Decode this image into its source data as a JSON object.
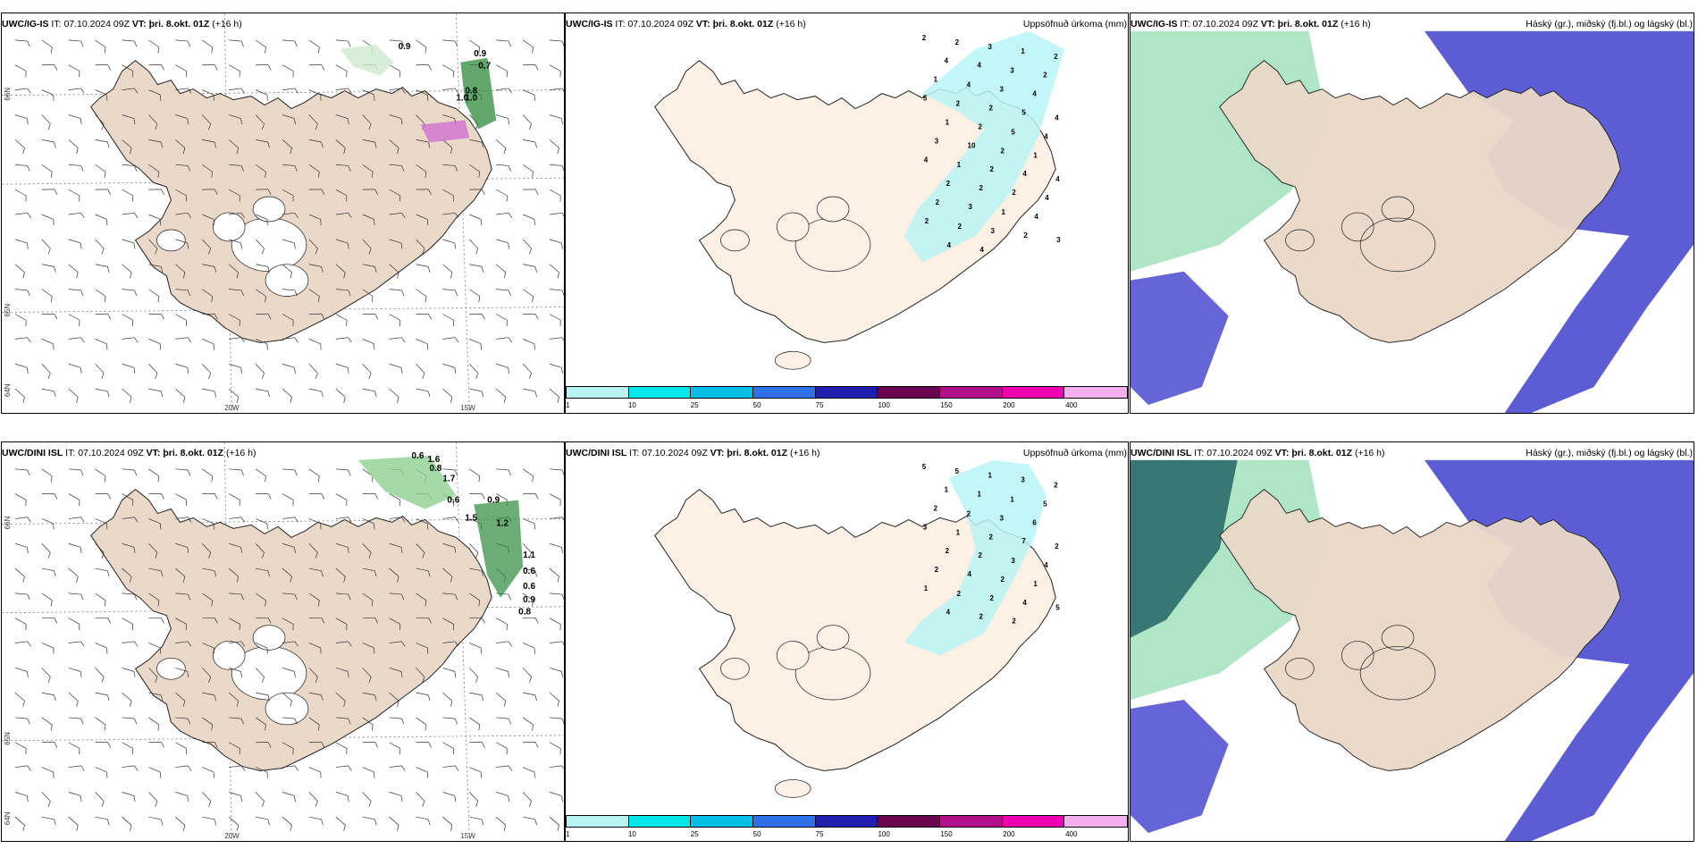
{
  "rows": [
    {
      "model": "UWC/IG-IS",
      "it_label": "IT:",
      "it_value": "07.10.2024 09Z",
      "vt_label": "VT:",
      "vt_value": "þri. 8.okt. 01Z",
      "lead": "(+16 h)",
      "precip_title": "Uppsöfnuð úrkoma (mm)",
      "cloud_title": "Háský (gr.), miðský (fj.bl.) og lágský (bl.)",
      "precip_labels": [
        "2",
        "2",
        "3",
        "1",
        "2",
        "4",
        "4",
        "3",
        "2",
        "1",
        "4",
        "3",
        "4",
        "5",
        "2",
        "2",
        "5",
        "4",
        "1",
        "2",
        "5",
        "4",
        "3",
        "10",
        "2",
        "1",
        "4",
        "1",
        "2",
        "4",
        "4",
        "2",
        "2",
        "2",
        "4",
        "2",
        "3",
        "1",
        "4",
        "2",
        "2",
        "3",
        "2",
        "3",
        "4",
        "4"
      ],
      "lat_labels": [
        "66N",
        "65N",
        "64N"
      ],
      "lon_labels": [
        "20W",
        "15W"
      ]
    },
    {
      "model": "UWC/DINI ISL",
      "it_label": "IT:",
      "it_value": "07.10.2024 09Z",
      "vt_label": "VT:",
      "vt_value": "þri. 8.okt. 01Z",
      "lead": "(+16 h)",
      "precip_title": "Uppsöfnuð úrkoma (mm)",
      "cloud_title": "Háský (gr.), miðský (fj.bl.) og lágský (bl.)",
      "precip_labels": [
        "5",
        "5",
        "1",
        "3",
        "2",
        "1",
        "1",
        "1",
        "5",
        "2",
        "2",
        "3",
        "6",
        "3",
        "1",
        "2",
        "7",
        "2",
        "2",
        "2",
        "3",
        "4",
        "2",
        "4",
        "2",
        "1",
        "1",
        "2",
        "2",
        "4",
        "5",
        "4",
        "2",
        "2"
      ],
      "lat_labels": [
        "66N",
        "65N",
        "64N"
      ],
      "lon_labels": [
        "20W",
        "15W"
      ]
    }
  ],
  "precip_values_row1": [
    "0.9",
    "0.9",
    "0.7",
    "0.8",
    "1.0",
    "1.0"
  ],
  "precip_values_row2": [
    "0.6",
    "1.6",
    "0.8",
    "1.7",
    "0.6",
    "0.9",
    "1.5",
    "1.2",
    "1.1",
    "0.6",
    "0.6",
    "0.9",
    "0.8"
  ],
  "colorbar": {
    "ticks": [
      "1",
      "10",
      "25",
      "50",
      "75",
      "100",
      "150",
      "200",
      "400"
    ],
    "colors": [
      "#b8f4f4",
      "#00e8ee",
      "#00c0e8",
      "#2f70e8",
      "#2020b0",
      "#6a0050",
      "#b0108a",
      "#f000b0",
      "#f4b0ee"
    ]
  },
  "colors": {
    "land": "#ead9c8",
    "land_precip_panel": "#fdf0e4",
    "precip_light": "#b8f4f4",
    "cloud_high": "#2a6a6a",
    "cloud_mid": "#7ad5a0",
    "cloud_low": "#4a4ad0"
  }
}
